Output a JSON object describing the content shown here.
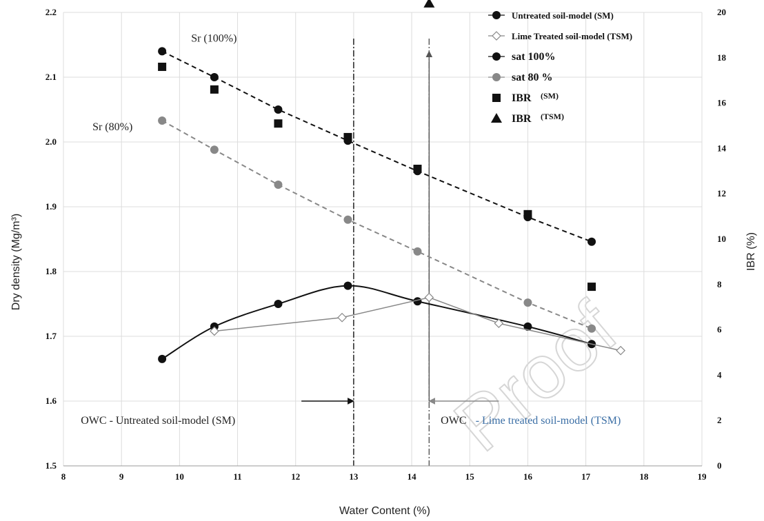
{
  "chart_data": {
    "type": "scatter",
    "xlabel": "Water Content (%)",
    "ylabel": "Dry density (Mg/m³)",
    "y2label": "IBR (%)",
    "xlim": [
      8,
      19
    ],
    "ylim": [
      1.5,
      2.2
    ],
    "y2lim": [
      0,
      20
    ],
    "x_ticks": [
      "8",
      "9",
      "10",
      "11",
      "12",
      "13",
      "14",
      "15",
      "16",
      "17",
      "18",
      "19"
    ],
    "y_ticks": [
      "1.5",
      "1.6",
      "1.7",
      "1.8",
      "1.9",
      "2.0",
      "2.1",
      "2.2"
    ],
    "y2_ticks": [
      "0",
      "2",
      "4",
      "6",
      "8",
      "10",
      "12",
      "14",
      "16",
      "18",
      "20"
    ],
    "grid": true,
    "legend_position": "top-right",
    "legend": [
      {
        "label": "Untreated  soil-model (SM)",
        "marker": "circle-filled-line"
      },
      {
        "label": "Lime Treated soil-model (TSM)",
        "marker": "diamond-open-line"
      },
      {
        "label": "sat 100%",
        "marker": "circle-filled-line"
      },
      {
        "label": "sat 80 %",
        "marker": "circle-gray-line"
      },
      {
        "label": "IBR",
        "sub": "(SM)",
        "marker": "square"
      },
      {
        "label": "IBR",
        "sub": "(TSM)",
        "marker": "triangle"
      }
    ],
    "series": [
      {
        "name": "Untreated  soil-model (SM)",
        "axis": "left",
        "color": "#111111",
        "style": "solid-smooth",
        "marker": "circle",
        "x": [
          9.7,
          10.6,
          11.7,
          12.9,
          14.1,
          16.0,
          17.1
        ],
        "y": [
          1.665,
          1.715,
          1.75,
          1.778,
          1.754,
          1.715,
          1.688
        ]
      },
      {
        "name": "Lime Treated soil-model (TSM)",
        "axis": "left",
        "color": "#888888",
        "style": "solid",
        "marker": "diamond",
        "x": [
          10.6,
          12.8,
          14.3,
          15.5,
          17.6
        ],
        "y": [
          1.708,
          1.729,
          1.76,
          1.72,
          1.678
        ]
      },
      {
        "name": "sat 100%",
        "axis": "left",
        "color": "#111111",
        "style": "dashed",
        "marker": "circle",
        "x": [
          9.7,
          10.6,
          11.7,
          12.9,
          14.1,
          16.0,
          17.1
        ],
        "y": [
          2.14,
          2.1,
          2.05,
          2.002,
          1.955,
          1.884,
          1.846
        ]
      },
      {
        "name": "sat 80 %",
        "axis": "left",
        "color": "#888888",
        "style": "dashed",
        "marker": "circle",
        "x": [
          9.7,
          10.6,
          11.7,
          12.9,
          14.1,
          16.0,
          17.1
        ],
        "y": [
          2.033,
          1.988,
          1.934,
          1.88,
          1.831,
          1.752,
          1.712
        ]
      },
      {
        "name": "IBR (SM)",
        "axis": "right",
        "color": "#111111",
        "style": "none",
        "marker": "square",
        "x": [
          9.7,
          10.6,
          11.7,
          12.9,
          14.1,
          16.0,
          17.1
        ],
        "y": [
          17.6,
          16.6,
          15.1,
          14.5,
          13.1,
          11.1,
          7.9
        ]
      },
      {
        "name": "IBR (TSM)",
        "axis": "right",
        "color": "#111111",
        "style": "none",
        "marker": "triangle",
        "x": [
          14.3
        ],
        "y": [
          20.4
        ]
      }
    ],
    "vlines": [
      {
        "x": 13.0,
        "color": "#111111"
      },
      {
        "x": 14.3,
        "color": "#555555"
      }
    ],
    "arrows": [
      {
        "x_from": 12.1,
        "x_to": 13.0,
        "y": 1.6,
        "color": "#111111"
      },
      {
        "x_from": 15.5,
        "x_to": 14.3,
        "y": 1.6,
        "color": "#888888"
      },
      {
        "x_from": 14.3,
        "x_to": 14.3,
        "y_from": 1.6,
        "y_to": 2.14,
        "color": "#555555"
      }
    ],
    "annotations": {
      "sr100": {
        "text": "Sr (100%)",
        "x": 10.2,
        "y": 2.155
      },
      "sr80": {
        "text": "Sr (80%)",
        "x": 8.5,
        "y": 2.018
      },
      "owc_sm": {
        "text": "OWC - Untreated soil-model (SM)",
        "x": 8.3,
        "y": 1.565
      },
      "owc_tsm_prefix": {
        "text": "OWC",
        "x": 14.5,
        "y": 1.565
      },
      "owc_tsm_rest": {
        "text": " - Lime treated soil-model (TSM)",
        "x": 15.1,
        "y": 1.565
      }
    },
    "watermark": "Proof"
  }
}
